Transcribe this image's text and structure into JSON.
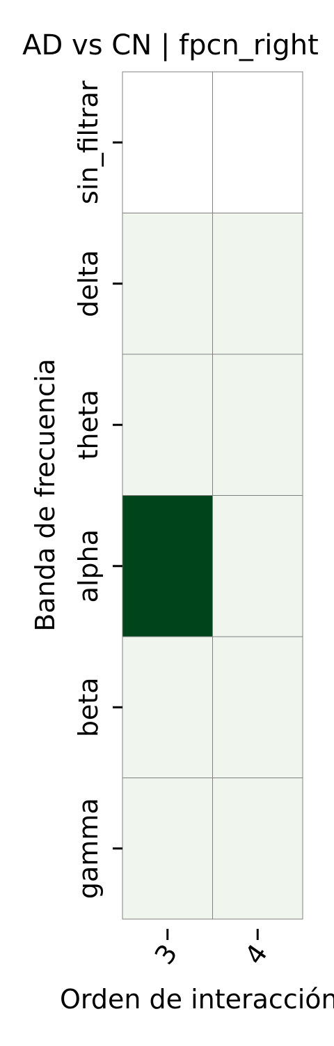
{
  "chart_data": {
    "type": "heatmap",
    "title": "AD vs CN | fpcn_right",
    "xlabel": "Orden de interacción",
    "ylabel": "Banda de frecuencia",
    "x_categories": [
      "3",
      "4"
    ],
    "y_categories": [
      "sin_filtrar",
      "delta",
      "theta",
      "alpha",
      "beta",
      "gamma"
    ],
    "values": [
      [
        0.0,
        0.0
      ],
      [
        0.03,
        0.03
      ],
      [
        0.03,
        0.03
      ],
      [
        1.0,
        0.03
      ],
      [
        0.03,
        0.03
      ],
      [
        0.03,
        0.03
      ]
    ],
    "colormap": "Greens",
    "low_color": "#f7fcf5",
    "high_color": "#00441b",
    "empty_color": "#ffffff",
    "grid_color": "#808080",
    "colorbar": false
  }
}
